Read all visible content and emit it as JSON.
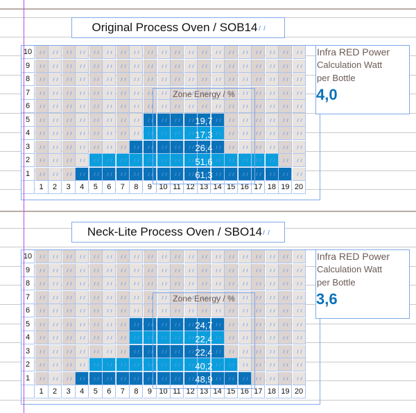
{
  "colors": {
    "dark_blue": "#0a72b8",
    "light_blue": "#0a9fdc",
    "beige_dark": "#ddd3cf",
    "beige_light": "#e9e3e0"
  },
  "charts": [
    {
      "title": "Original Process Oven / SOB14",
      "zone_label": "Zone Energy / %",
      "info_line1": "Infra RED Power",
      "info_line2": "Calculation Watt",
      "info_line3": "per Bottle",
      "info_value": "4,0",
      "zone_values": [
        "19,7",
        "17,3",
        "26,4",
        "51,6",
        "61,3"
      ]
    },
    {
      "title": "Neck-Lite Process Oven / SBO14",
      "zone_label": "Zone Energy / %",
      "info_line1": "Infra RED Power",
      "info_line2": "Calculation Watt",
      "info_line3": "per Bottle",
      "info_value": "3,6",
      "zone_values": [
        "24,7",
        "22,4",
        "22,4",
        "40,2",
        "48,9"
      ]
    }
  ],
  "chart_data": [
    {
      "type": "heatmap",
      "title": "Original Process Oven / SOB14",
      "x": [
        1,
        2,
        3,
        4,
        5,
        6,
        7,
        8,
        9,
        10,
        11,
        12,
        13,
        14,
        15,
        16,
        17,
        18,
        19,
        20
      ],
      "y": [
        1,
        2,
        3,
        4,
        5,
        6,
        7,
        8,
        9,
        10
      ],
      "zones": [
        {
          "row": 5,
          "cols": [
            9,
            14
          ],
          "value": 19.7
        },
        {
          "row": 4,
          "cols": [
            9,
            14
          ],
          "value": 17.3
        },
        {
          "row": 3,
          "cols": [
            8,
            14
          ],
          "value": 26.4
        },
        {
          "row": 2,
          "cols": [
            5,
            18
          ],
          "value": 51.6
        },
        {
          "row": 1,
          "cols": [
            4,
            19
          ],
          "value": 61.3
        }
      ],
      "annotation": "Zone Energy / %"
    },
    {
      "type": "heatmap",
      "title": "Neck-Lite Process Oven / SBO14",
      "x": [
        1,
        2,
        3,
        4,
        5,
        6,
        7,
        8,
        9,
        10,
        11,
        12,
        13,
        14,
        15,
        16,
        17,
        18,
        19,
        20
      ],
      "y": [
        1,
        2,
        3,
        4,
        5,
        6,
        7,
        8,
        9,
        10
      ],
      "zones": [
        {
          "row": 5,
          "cols": [
            8,
            14
          ],
          "value": 24.7
        },
        {
          "row": 4,
          "cols": [
            8,
            14
          ],
          "value": 22.4
        },
        {
          "row": 3,
          "cols": [
            8,
            14
          ],
          "value": 22.4
        },
        {
          "row": 2,
          "cols": [
            5,
            15
          ],
          "value": 40.2
        },
        {
          "row": 1,
          "cols": [
            4,
            16
          ],
          "value": 48.9
        }
      ],
      "annotation": "Zone Energy / %"
    }
  ]
}
